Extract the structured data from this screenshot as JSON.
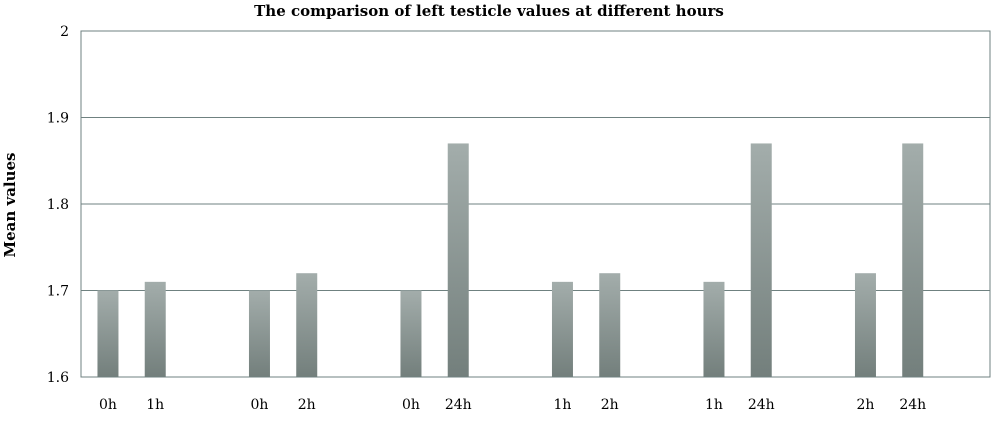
{
  "chart_data": {
    "type": "bar",
    "title": "The comparison of left testicle values at different hours",
    "xlabel": "",
    "ylabel": "Mean values",
    "ylim": [
      1.6,
      2.0
    ],
    "yticks": [
      "1.6",
      "1.7",
      "1.8",
      "1.9",
      "2"
    ],
    "grid": true,
    "groups": [
      {
        "bars": [
          {
            "label": "0h",
            "value": 1.7
          },
          {
            "label": "1h",
            "value": 1.71
          }
        ]
      },
      {
        "bars": [
          {
            "label": "0h",
            "value": 1.7
          },
          {
            "label": "2h",
            "value": 1.72
          }
        ]
      },
      {
        "bars": [
          {
            "label": "0h",
            "value": 1.7
          },
          {
            "label": "24h",
            "value": 1.87
          }
        ]
      },
      {
        "bars": [
          {
            "label": "1h",
            "value": 1.71
          },
          {
            "label": "2h",
            "value": 1.72
          }
        ]
      },
      {
        "bars": [
          {
            "label": "1h",
            "value": 1.71
          },
          {
            "label": "24h",
            "value": 1.87
          }
        ]
      },
      {
        "bars": [
          {
            "label": "2h",
            "value": 1.72
          },
          {
            "label": "24h",
            "value": 1.87
          }
        ]
      }
    ],
    "colors": {
      "bar_top": "#a3adab",
      "bar_bottom": "#737f7c",
      "grid": "#6f8180",
      "frame": "#6f8180"
    }
  }
}
